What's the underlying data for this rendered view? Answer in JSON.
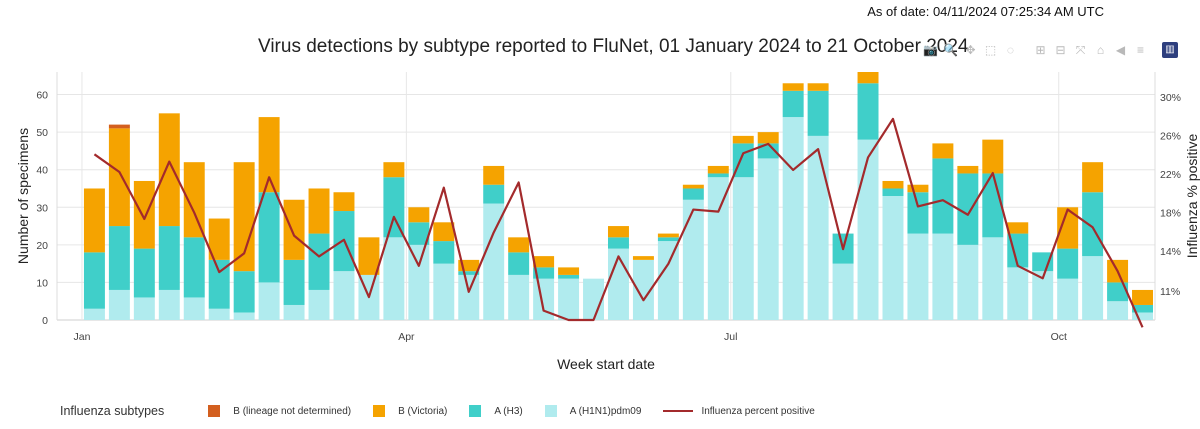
{
  "header": {
    "as_of": "As of date: 04/11/2024 07:25:34 AM UTC",
    "title": "Virus detections by subtype reported to FluNet, 01 January 2024 to 21 October 2024"
  },
  "toolbar": {
    "items": [
      {
        "name": "download-icon",
        "glyph": "📷"
      },
      {
        "name": "zoom-icon",
        "glyph": "🔍"
      },
      {
        "name": "pan-icon",
        "glyph": "✥"
      },
      {
        "name": "box-select-icon",
        "glyph": "⬚"
      },
      {
        "name": "lasso-select-icon",
        "glyph": "◌"
      },
      {
        "name": "zoom-in-icon",
        "glyph": "⊞"
      },
      {
        "name": "zoom-out-icon",
        "glyph": "⊟"
      },
      {
        "name": "autoscale-icon",
        "glyph": "⤧"
      },
      {
        "name": "reset-axes-icon",
        "glyph": "⌂"
      },
      {
        "name": "spike-lines-icon",
        "glyph": "◀"
      },
      {
        "name": "compare-hover-icon",
        "glyph": "≡"
      },
      {
        "name": "plotly-logo-icon",
        "glyph": "▥"
      }
    ]
  },
  "colors": {
    "h1n1": "#b0ebee",
    "h3": "#40cfc9",
    "victoria": "#f5a300",
    "lineage_nd": "#d35f1f",
    "line": "#a32a2c",
    "grid": "#e6e6e6",
    "axis_text": "#444444"
  },
  "legend": {
    "title": "Influenza subtypes",
    "items": [
      {
        "label": "B (lineage not determined)",
        "color": "#d35f1f",
        "kind": "bar"
      },
      {
        "label": "B (Victoria)",
        "color": "#f5a300",
        "kind": "bar"
      },
      {
        "label": "A (H3)",
        "color": "#40cfc9",
        "kind": "bar"
      },
      {
        "label": "A (H1N1)pdm09",
        "color": "#b0ebee",
        "kind": "bar"
      },
      {
        "label": "Influenza percent positive",
        "color": "#a32a2c",
        "kind": "line"
      }
    ]
  },
  "chart_data": {
    "type": "bar",
    "stacked": true,
    "title": "Virus detections by subtype reported to FluNet, 01 January 2024 to 21 October 2024",
    "xlabel": "Week start date",
    "ylabel": "Number of specimens",
    "y2label": "Influenza % positive",
    "ylim": [
      0,
      66
    ],
    "y2lim": [
      8.2,
      32
    ],
    "yticks": [
      "0",
      "10",
      "20",
      "30",
      "40",
      "50",
      "60"
    ],
    "y2ticks": [
      "11%",
      "14%",
      "18%",
      "22%",
      "26%",
      "30%"
    ],
    "y2tick_values": [
      11,
      14.8,
      18.5,
      22.2,
      25.9,
      29.6
    ],
    "x_week_start": "2024-01-01",
    "xlim": [
      "2023-12-25",
      "2024-10-28"
    ],
    "xtick_labels": [
      "Jan",
      "Apr",
      "Jul",
      "Oct"
    ],
    "xtick_dates": [
      "2024-01-01",
      "2024-04-01",
      "2024-07-01",
      "2024-10-01"
    ],
    "series": [
      {
        "name": "A (H1N1)pdm09",
        "values": [
          3,
          8,
          6,
          8,
          6,
          3,
          2,
          10,
          4,
          8,
          13,
          12,
          22,
          20,
          15,
          12,
          31,
          12,
          11,
          11,
          11,
          19,
          16,
          21,
          32,
          38,
          38,
          43,
          54,
          49,
          15,
          48,
          33,
          23,
          23,
          20,
          22,
          14,
          13,
          11,
          17,
          5,
          2
        ]
      },
      {
        "name": "A (H3)",
        "values": [
          15,
          17,
          13,
          17,
          16,
          13,
          11,
          24,
          12,
          15,
          16,
          0,
          16,
          6,
          6,
          1,
          5,
          6,
          3,
          1,
          0,
          3,
          0,
          1,
          3,
          1,
          9,
          4,
          7,
          12,
          8,
          15,
          2,
          11,
          20,
          19,
          17,
          9,
          5,
          8,
          17,
          5,
          2
        ]
      },
      {
        "name": "B (Victoria)",
        "values": [
          17,
          26,
          18,
          30,
          20,
          11,
          29,
          20,
          16,
          12,
          5,
          10,
          4,
          4,
          5,
          3,
          5,
          4,
          3,
          2,
          0,
          3,
          1,
          1,
          1,
          2,
          2,
          3,
          2,
          2,
          0,
          3,
          2,
          2,
          4,
          2,
          9,
          3,
          0,
          11,
          8,
          6,
          4
        ]
      },
      {
        "name": "B (lineage not determined)",
        "values": [
          0,
          1,
          0,
          0,
          0,
          0,
          0,
          0,
          0,
          0,
          0,
          0,
          0,
          0,
          0,
          0,
          0,
          0,
          0,
          0,
          0,
          0,
          0,
          0,
          0,
          0,
          0,
          0,
          0,
          0,
          0,
          0,
          0,
          0,
          0,
          0,
          0,
          0,
          0,
          0,
          0,
          0,
          0
        ]
      },
      {
        "name": "Influenza percent positive",
        "axis": "y2",
        "values": [
          24.1,
          22.4,
          17.9,
          23.4,
          18.5,
          12.8,
          14.6,
          21.9,
          16.3,
          14.3,
          15.9,
          10.4,
          18.1,
          13.4,
          20.9,
          10.9,
          16.6,
          21.4,
          9.1,
          8.2,
          8.2,
          14.3,
          10.1,
          13.6,
          18.8,
          18.6,
          24.2,
          25.1,
          22.6,
          24.6,
          15.0,
          23.8,
          27.5,
          19.1,
          19.7,
          18.3,
          22.3,
          13.4,
          12.2,
          18.8,
          17.1,
          12.9,
          7.5
        ]
      }
    ]
  }
}
